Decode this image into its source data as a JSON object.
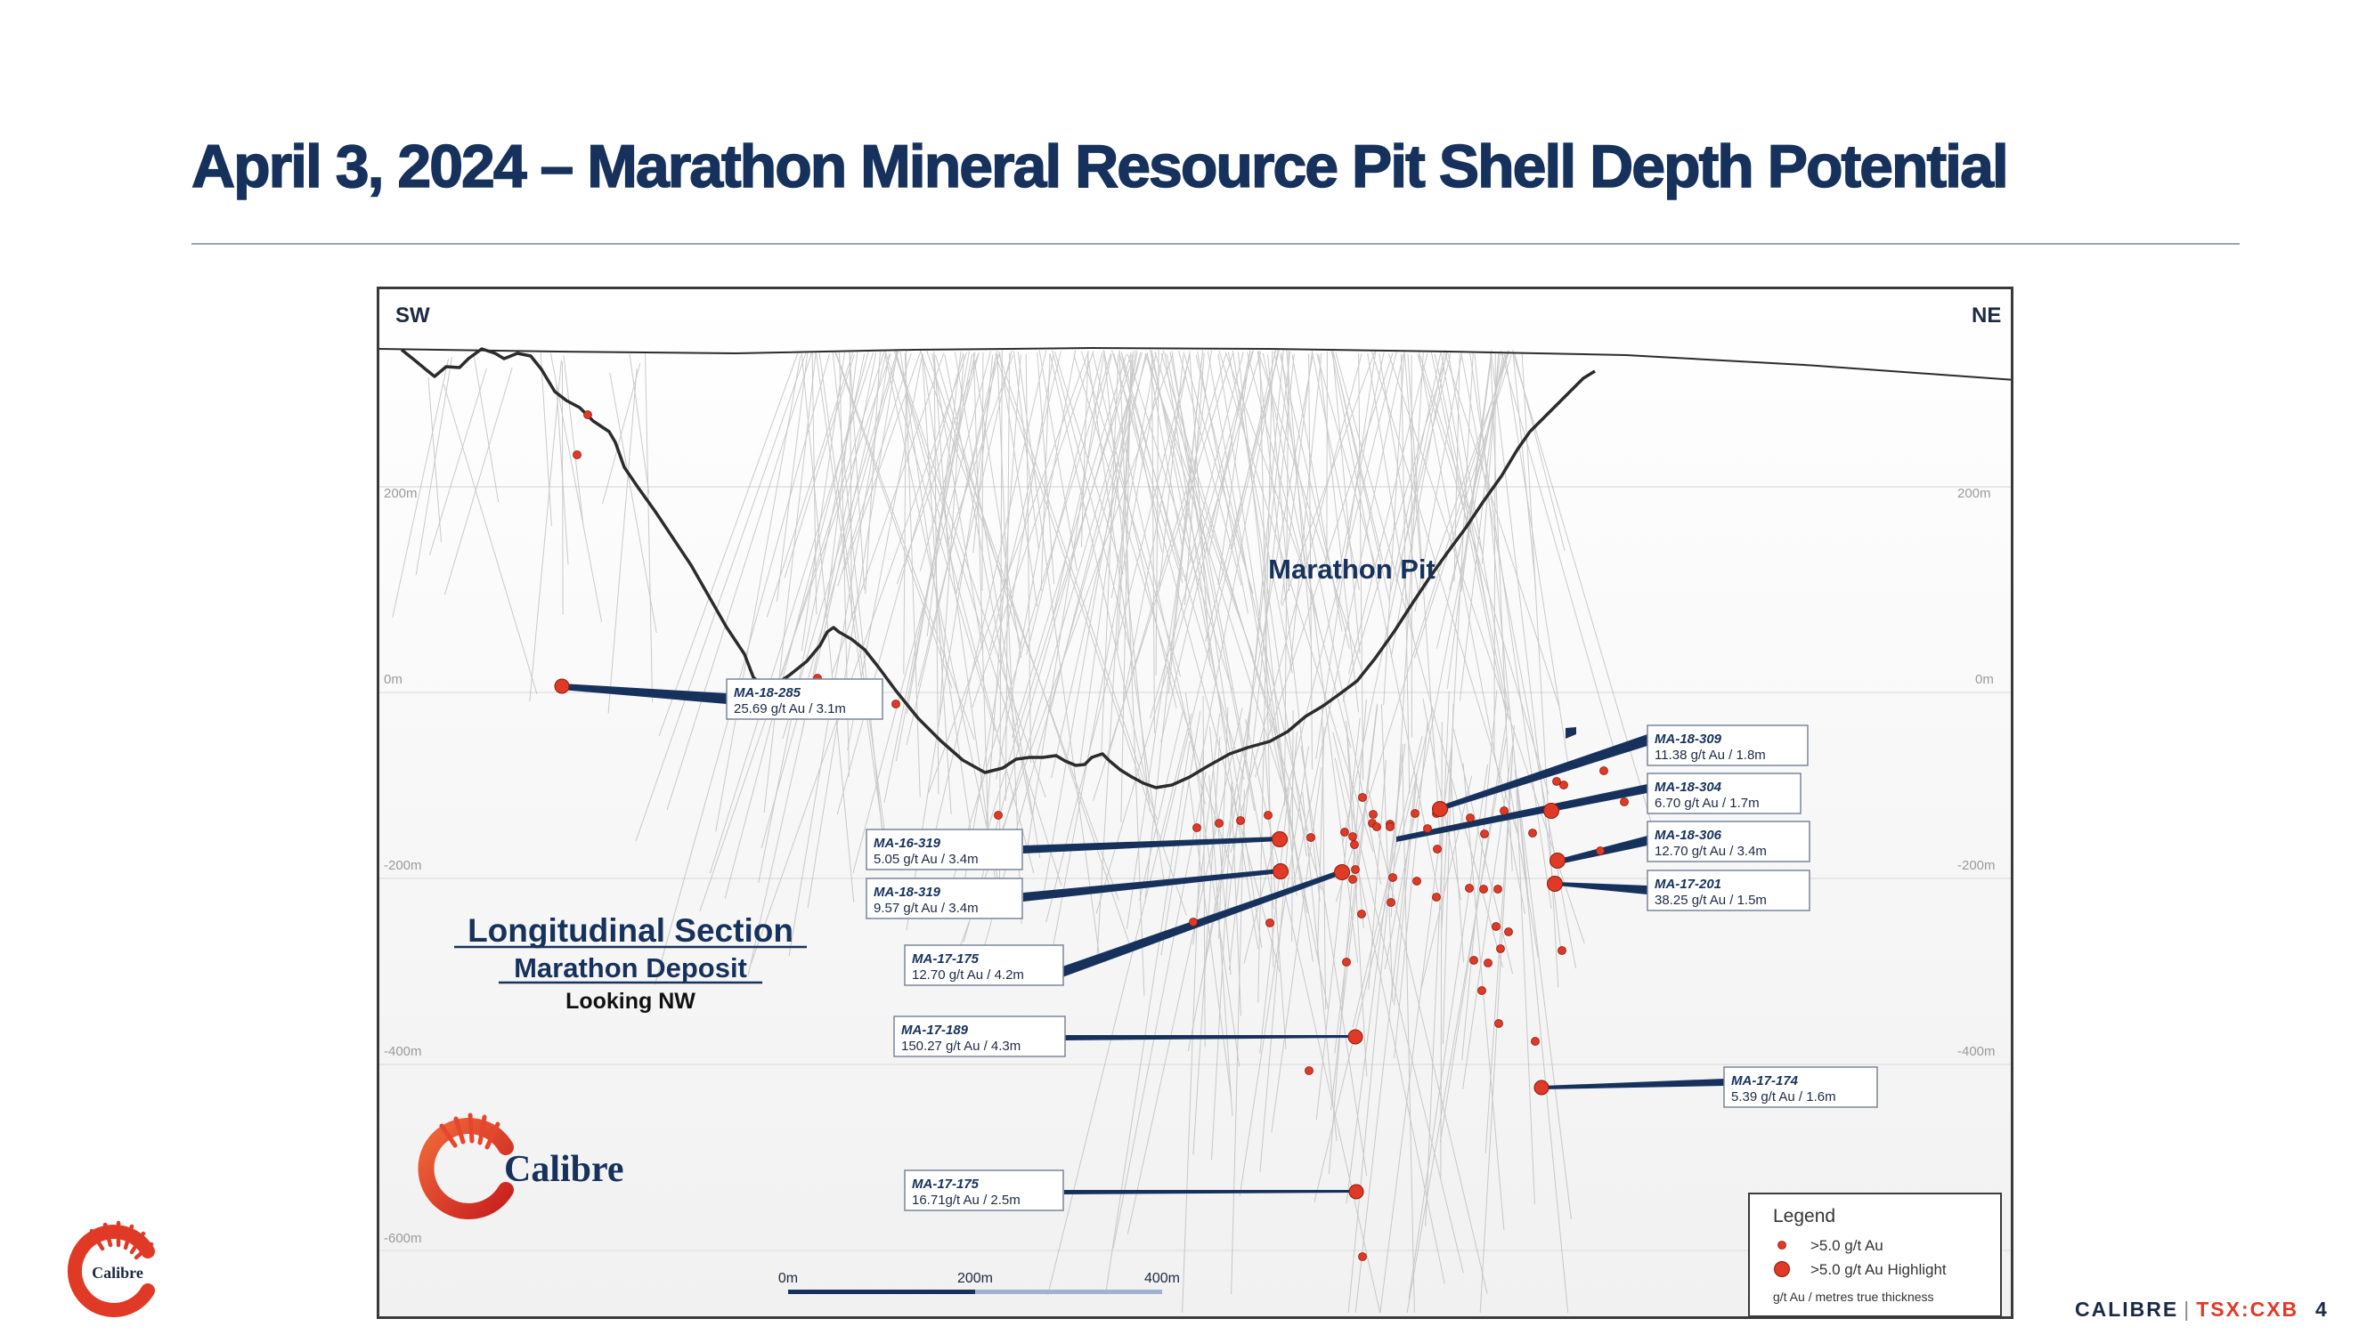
{
  "title": "April 3, 2024 – Marathon Mineral Resource Pit Shell Depth Potential",
  "section": {
    "direction_left": "SW",
    "direction_right": "NE",
    "pit_label": "Marathon Pit",
    "heading": "Longitudinal Section",
    "subheading": "Marathon Deposit",
    "view": "Looking NW",
    "elevation_labels": [
      "200m",
      "0m",
      "-200m",
      "-400m",
      "-600m"
    ],
    "scale_bar": [
      "0m",
      "200m",
      "400m"
    ],
    "logo_text": "Calibre"
  },
  "callouts": [
    {
      "hole": "MA-18-285",
      "grade": "25.69 g/t Au / 3.1m"
    },
    {
      "hole": "MA-18-309",
      "grade": "11.38 g/t Au / 1.8m"
    },
    {
      "hole": "MA-18-304",
      "grade": "6.70 g/t Au / 1.7m"
    },
    {
      "hole": "MA-16-319",
      "grade": "5.05 g/t Au / 3.4m"
    },
    {
      "hole": "MA-18-306",
      "grade": "12.70 g/t Au / 3.4m"
    },
    {
      "hole": "MA-18-319",
      "grade": "9.57 g/t Au / 3.4m"
    },
    {
      "hole": "MA-17-201",
      "grade": "38.25 g/t Au / 1.5m"
    },
    {
      "hole": "MA-17-175",
      "grade": "12.70 g/t Au / 4.2m"
    },
    {
      "hole": "MA-17-189",
      "grade": "150.27 g/t Au / 4.3m"
    },
    {
      "hole": "MA-17-174",
      "grade": "5.39 g/t Au / 1.6m"
    },
    {
      "hole": "MA-17-175",
      "grade": "16.71g/t Au / 2.5m"
    }
  ],
  "legend": {
    "title": "Legend",
    "items": [
      ">5.0 g/t Au",
      ">5.0 g/t Au Highlight"
    ],
    "note": "g/t Au / metres true thickness"
  },
  "colors": {
    "navy": "#16325c",
    "red": "#e03a26",
    "pit_outline": "#2b2b2b"
  },
  "footer": {
    "brand": "CALIBRE",
    "separator": "|",
    "ticker": "TSX:CXB",
    "page": "4",
    "logo_text": "Calibre"
  }
}
